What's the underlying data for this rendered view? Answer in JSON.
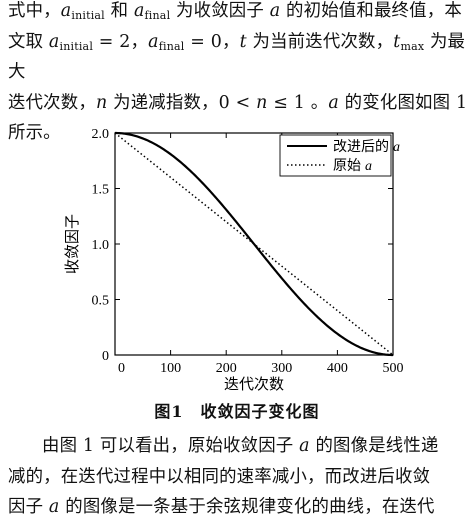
{
  "paragraph1": {
    "line1_a": "式中，",
    "a_initial_var": "a",
    "initial_sub": "initial",
    "and": " 和 ",
    "a_final_var": "a",
    "final_sub": "final",
    "line1_b": " 为收敛因子 ",
    "a_var": "a",
    "line1_c": " 的初始值和最终值，本",
    "line2_a": "文取 ",
    "eq1": " = 2，",
    "eq2": " = 0，",
    "t_var": "t",
    "line2_b": " 为当前迭代次数，",
    "tmax_var": "t",
    "max_sub": "max",
    "line2_c": " 为最大",
    "line3_a": "迭代次数，",
    "n_var": "n",
    "line3_b": " 为递减指数，0 < ",
    "line3_c": " ≤ 1 。",
    "line3_d": " 的变化图如图 1",
    "line4": "所示。"
  },
  "chart_data": {
    "type": "line",
    "title": "",
    "xlabel": "迭代次数",
    "ylabel": "收敛因子",
    "xlim": [
      0,
      500
    ],
    "ylim": [
      0,
      2.0
    ],
    "xticks": [
      "100",
      "200",
      "300",
      "400",
      "500"
    ],
    "yticks": [
      "0",
      "0.5",
      "1.0",
      "1.5",
      "2.0"
    ],
    "x0_label": "0",
    "legend_position": "top-right",
    "series": [
      {
        "name": "改进后的 a",
        "legend_text": "改进后的",
        "legend_var": "a",
        "style": "solid",
        "formula": "1 + cos(pi * t / 500)",
        "x": [
          0,
          50,
          100,
          150,
          200,
          250,
          300,
          350,
          400,
          450,
          500
        ],
        "y": [
          2.0,
          1.951,
          1.809,
          1.588,
          1.309,
          1.0,
          0.691,
          0.412,
          0.191,
          0.049,
          0.0
        ]
      },
      {
        "name": "原始 a",
        "legend_text": "原始",
        "legend_var": "a",
        "style": "dotted",
        "x": [
          0,
          500
        ],
        "y": [
          2.0,
          0.0
        ]
      }
    ]
  },
  "caption": "图1　收敛因子变化图",
  "paragraph2": {
    "line1_a": "由图 1 可以看出，原始收敛因子 ",
    "line1_b": " 的图像是线性递",
    "line2": "减的，在迭代过程中以相同的速率减小，而改进后收敛",
    "line3_a": "因子 ",
    "line3_b": " 的图像是一条基于余弦规律变化的曲线，在迭代"
  }
}
